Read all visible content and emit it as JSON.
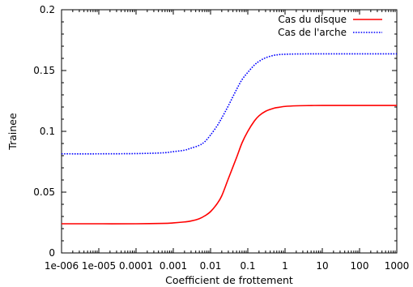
{
  "chart_data": {
    "type": "line",
    "title": "",
    "xlabel": "Coefficient de frottement",
    "ylabel": "Trainee",
    "xscale": "log",
    "xlim": [
      1e-06,
      1000
    ],
    "ylim": [
      0,
      0.2
    ],
    "grid": false,
    "legend_position": "top-right",
    "x_tick_values": [
      1e-06,
      1e-05,
      0.0001,
      0.001,
      0.01,
      0.1,
      1,
      10,
      100,
      1000
    ],
    "x_tick_labels": [
      "1e-006",
      "1e-005",
      "0.0001",
      "0.001",
      "0.01",
      "0.1",
      "1",
      "10",
      "100",
      "1000"
    ],
    "y_tick_values": [
      0,
      0.05,
      0.1,
      0.15,
      0.2
    ],
    "y_tick_labels": [
      "0",
      "0.05",
      "0.1",
      "0.15",
      "0.2"
    ],
    "series": [
      {
        "name": "Cas du disque",
        "color": "#ff0000",
        "style": "solid",
        "x": [
          1e-06,
          1e-05,
          0.0001,
          0.0005,
          0.001,
          0.002,
          0.003,
          0.005,
          0.007,
          0.01,
          0.015,
          0.02,
          0.03,
          0.05,
          0.07,
          0.1,
          0.15,
          0.2,
          0.3,
          0.5,
          0.7,
          1,
          2,
          5,
          10,
          100,
          1000
        ],
        "values": [
          0.024,
          0.024,
          0.024,
          0.0243,
          0.0247,
          0.0255,
          0.0263,
          0.0282,
          0.0305,
          0.034,
          0.0405,
          0.047,
          0.061,
          0.0785,
          0.0905,
          0.1,
          0.1085,
          0.1128,
          0.1165,
          0.119,
          0.1198,
          0.1205,
          0.121,
          0.1212,
          0.1213,
          0.1213,
          0.1213
        ]
      },
      {
        "name": "Cas de l'arche",
        "color": "#0000ff",
        "style": "dotted",
        "x": [
          1e-06,
          1e-05,
          0.0001,
          0.0005,
          0.001,
          0.002,
          0.003,
          0.005,
          0.007,
          0.01,
          0.015,
          0.02,
          0.03,
          0.05,
          0.07,
          0.1,
          0.15,
          0.2,
          0.3,
          0.5,
          0.7,
          1,
          2,
          5,
          10,
          100,
          1000
        ],
        "values": [
          0.0815,
          0.0815,
          0.0817,
          0.0823,
          0.0833,
          0.0845,
          0.0862,
          0.0885,
          0.0915,
          0.097,
          0.1045,
          0.111,
          0.121,
          0.1345,
          0.1425,
          0.1485,
          0.1545,
          0.1575,
          0.1605,
          0.1625,
          0.1631,
          0.1634,
          0.1636,
          0.1637,
          0.1637,
          0.1637,
          0.1637
        ]
      }
    ]
  }
}
